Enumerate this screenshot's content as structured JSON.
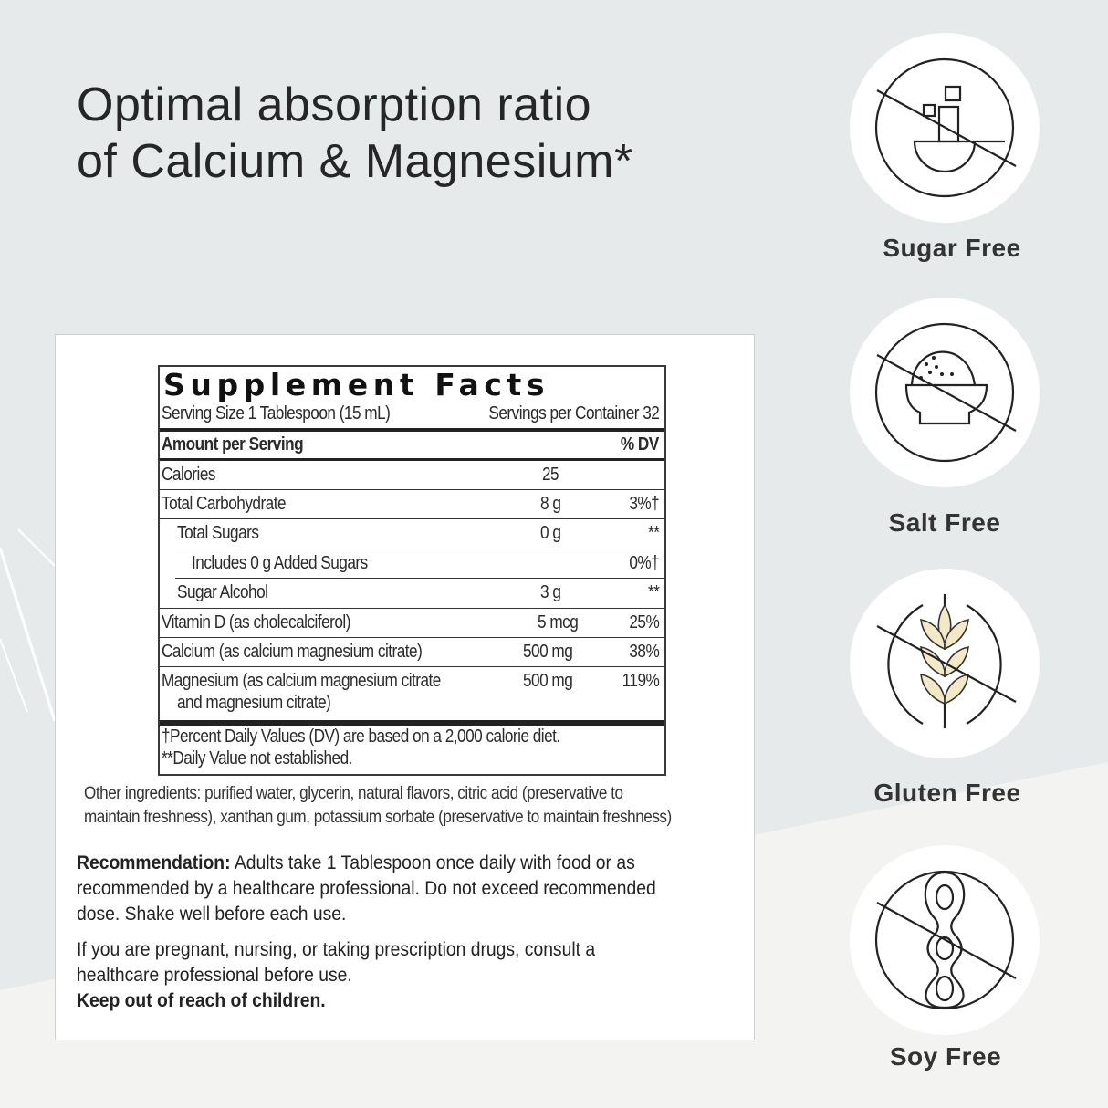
{
  "headline": {
    "line1": "Optimal absorption ratio",
    "line2": "of Calcium & Magnesium*"
  },
  "supplement_facts": {
    "title": "Supplement Facts",
    "serving_size": "Serving Size 1 Tablespoon (15 mL)",
    "servings_per_container": "Servings per Container 32",
    "amount_header": "Amount per Serving",
    "dv_header": "% DV",
    "rows": [
      {
        "name": "Calories",
        "amount": "25",
        "dv": ""
      },
      {
        "name": "Total Carbohydrate",
        "amount": "8 g",
        "dv": "3%†"
      },
      {
        "name": "Total Sugars",
        "amount": "0 g",
        "dv": "**"
      },
      {
        "name": "Includes 0 g Added Sugars",
        "amount": "",
        "dv": "0%†"
      },
      {
        "name": "Sugar Alcohol",
        "amount": "3 g",
        "dv": "**"
      },
      {
        "name": "Vitamin D (as cholecalciferol)",
        "amount": "5 mcg",
        "dv": "25%"
      },
      {
        "name": "Calcium (as calcium magnesium citrate)",
        "amount": "500 mg",
        "dv": "38%"
      },
      {
        "name": "Magnesium (as calcium magnesium citrate",
        "name_line2": "and magnesium citrate)",
        "amount": "500 mg",
        "dv": "119%"
      }
    ],
    "footnote1": "†Percent Daily Values (DV) are based on a 2,000 calorie diet.",
    "footnote2": "**Daily Value not established."
  },
  "other_ingredients": {
    "line1": "Other ingredients: purified water, glycerin, natural flavors, citric acid (preservative to",
    "line2": "maintain freshness), xanthan gum, potassium sorbate (preservative to maintain freshness)"
  },
  "recommendation": {
    "label": "Recommendation:",
    "line1": " Adults take 1 Tablespoon once daily with food or as",
    "line2": "recommended by a healthcare professional. Do not exceed recommended",
    "line3": "dose. Shake well before each use."
  },
  "warning": {
    "line1": "If you are pregnant, nursing, or taking prescription drugs, consult a",
    "line2": "healthcare professional before use.",
    "line3": "Keep out of reach of children."
  },
  "badges": [
    {
      "label": "Sugar Free",
      "icon": "no-sugar-icon"
    },
    {
      "label": "Salt Free",
      "icon": "no-salt-icon"
    },
    {
      "label": "Gluten Free",
      "icon": "no-gluten-icon"
    },
    {
      "label": "Soy Free",
      "icon": "no-soy-icon"
    }
  ],
  "colors": {
    "background": "#e6eaeb",
    "background_lower": "#f3f3f1",
    "panel": "#ffffff",
    "text": "#222222",
    "wheat_fill": "#f3e9c6"
  }
}
